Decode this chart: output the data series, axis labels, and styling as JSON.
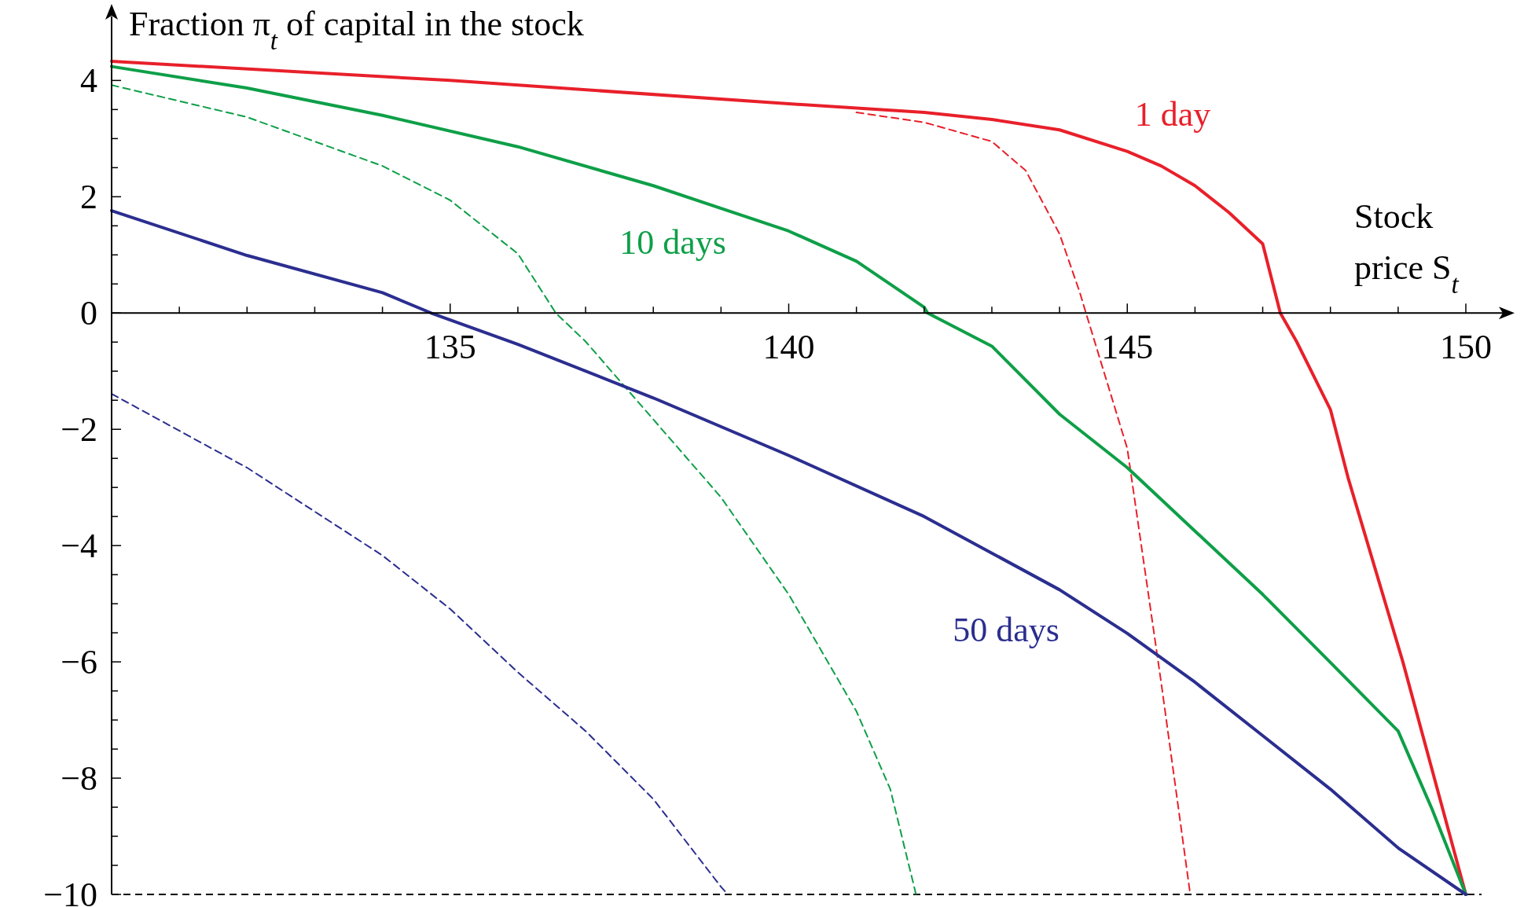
{
  "chart_data": {
    "type": "line",
    "xlabel": "Stock\nprice S$_{t}$",
    "ylabel": "Fraction π$_{t}$ of capital in the stock",
    "xlim": [
      130,
      150
    ],
    "ylim": [
      -10,
      5.1
    ],
    "xticks": [
      {
        "value": 131,
        "label": null
      },
      {
        "value": 132,
        "label": null
      },
      {
        "value": 133,
        "label": null
      },
      {
        "value": 134,
        "label": null
      },
      135,
      {
        "value": 136,
        "label": null
      },
      {
        "value": 137,
        "label": null
      },
      {
        "value": 138,
        "label": null
      },
      {
        "value": 139,
        "label": null
      },
      140,
      {
        "value": 141,
        "label": null
      },
      {
        "value": 142,
        "label": null
      },
      {
        "value": 143,
        "label": null
      },
      {
        "value": 144,
        "label": null
      },
      145,
      {
        "value": 146,
        "label": null
      },
      {
        "value": 147,
        "label": null
      },
      {
        "value": 148,
        "label": null
      },
      {
        "value": 149,
        "label": null
      },
      150
    ],
    "yticks": [
      {
        "value": -10,
        "label": "−10"
      },
      {
        "value": -9.5,
        "label": null
      },
      {
        "value": -9,
        "label": null
      },
      {
        "value": -8.5,
        "label": null
      },
      {
        "value": -8,
        "label": "−8"
      },
      {
        "value": -7.5,
        "label": null
      },
      {
        "value": -7,
        "label": null
      },
      {
        "value": -6.5,
        "label": null
      },
      {
        "value": -6,
        "label": "−6"
      },
      {
        "value": -5.5,
        "label": null
      },
      {
        "value": -5,
        "label": null
      },
      {
        "value": -4.5,
        "label": null
      },
      {
        "value": -4,
        "label": "−4"
      },
      {
        "value": -3.5,
        "label": null
      },
      {
        "value": -3,
        "label": null
      },
      {
        "value": -2.5,
        "label": null
      },
      {
        "value": -2,
        "label": "−2"
      },
      {
        "value": -1.5,
        "label": null
      },
      {
        "value": -1,
        "label": null
      },
      {
        "value": -0.5,
        "label": null
      },
      0,
      {
        "value": 0.5,
        "label": null
      },
      {
        "value": 1,
        "label": null
      },
      {
        "value": 1.5,
        "label": null
      },
      2,
      {
        "value": 2.5,
        "label": null
      },
      {
        "value": 3,
        "label": null
      },
      {
        "value": 3.5,
        "label": null
      },
      4
    ],
    "grid": false,
    "marker": "none",
    "ref_lines": [
      {
        "axis": "y",
        "value": -10,
        "label": null,
        "color": "#000000",
        "line_style": "dashed"
      }
    ],
    "annotations": [
      "1 day",
      "10 days",
      "50 days"
    ],
    "series": [
      {
        "color": "#e8202a",
        "line_style": "solid",
        "x": [
          130,
          135,
          140,
          142,
          143,
          144,
          145,
          145.5,
          146,
          146.5,
          147,
          147.26,
          147.5,
          148,
          148.26,
          149.07,
          150
        ],
        "values": [
          4.33,
          4.0,
          3.6,
          3.45,
          3.33,
          3.15,
          2.78,
          2.53,
          2.19,
          1.73,
          1.19,
          0,
          -0.49,
          -1.66,
          -2.83,
          -6.0,
          -10
        ]
      },
      {
        "color": "#e8202a",
        "line_style": "dashed",
        "x": [
          141,
          142,
          143,
          143.5,
          144,
          144.3,
          144.39,
          145,
          145.5,
          145.93
        ],
        "values": [
          3.45,
          3.28,
          2.95,
          2.45,
          1.36,
          0.35,
          0,
          -2.33,
          -6.35,
          -10
        ]
      },
      {
        "color": "#0e9f48",
        "line_style": "solid",
        "x": [
          130,
          132,
          134,
          136,
          138,
          140,
          141,
          142,
          142.05,
          143,
          144,
          145,
          146,
          147,
          148,
          149,
          149.5,
          150
        ],
        "values": [
          4.24,
          3.87,
          3.4,
          2.86,
          2.19,
          1.41,
          0.89,
          0.1,
          0,
          -0.57,
          -1.74,
          -2.66,
          -3.75,
          -4.84,
          -6.01,
          -7.19,
          -8.53,
          -10
        ]
      },
      {
        "color": "#0e9f48",
        "line_style": "dashed",
        "x": [
          130,
          132,
          134,
          135,
          136,
          136.56,
          137,
          138,
          139,
          140,
          141,
          141.5,
          141.88
        ],
        "values": [
          3.92,
          3.37,
          2.53,
          1.94,
          1.02,
          0,
          -0.49,
          -1.83,
          -3.17,
          -4.84,
          -6.85,
          -8.19,
          -10
        ]
      },
      {
        "color": "#2b2e8f",
        "line_style": "solid",
        "x": [
          130,
          132,
          134,
          134.72,
          136,
          138,
          140,
          142,
          144,
          145,
          146,
          147,
          148,
          149,
          150
        ],
        "values": [
          1.76,
          0.99,
          0.35,
          0,
          -0.54,
          -1.46,
          -2.45,
          -3.5,
          -4.76,
          -5.51,
          -6.35,
          -7.27,
          -8.19,
          -9.2,
          -10
        ]
      },
      {
        "color": "#2b2e8f",
        "line_style": "dashed",
        "x": [
          130,
          132,
          134,
          135,
          136,
          137,
          138,
          139,
          139.1
        ],
        "values": [
          -1.39,
          -2.66,
          -4.17,
          -5.09,
          -6.18,
          -7.19,
          -8.36,
          -9.87,
          -10
        ]
      }
    ]
  }
}
